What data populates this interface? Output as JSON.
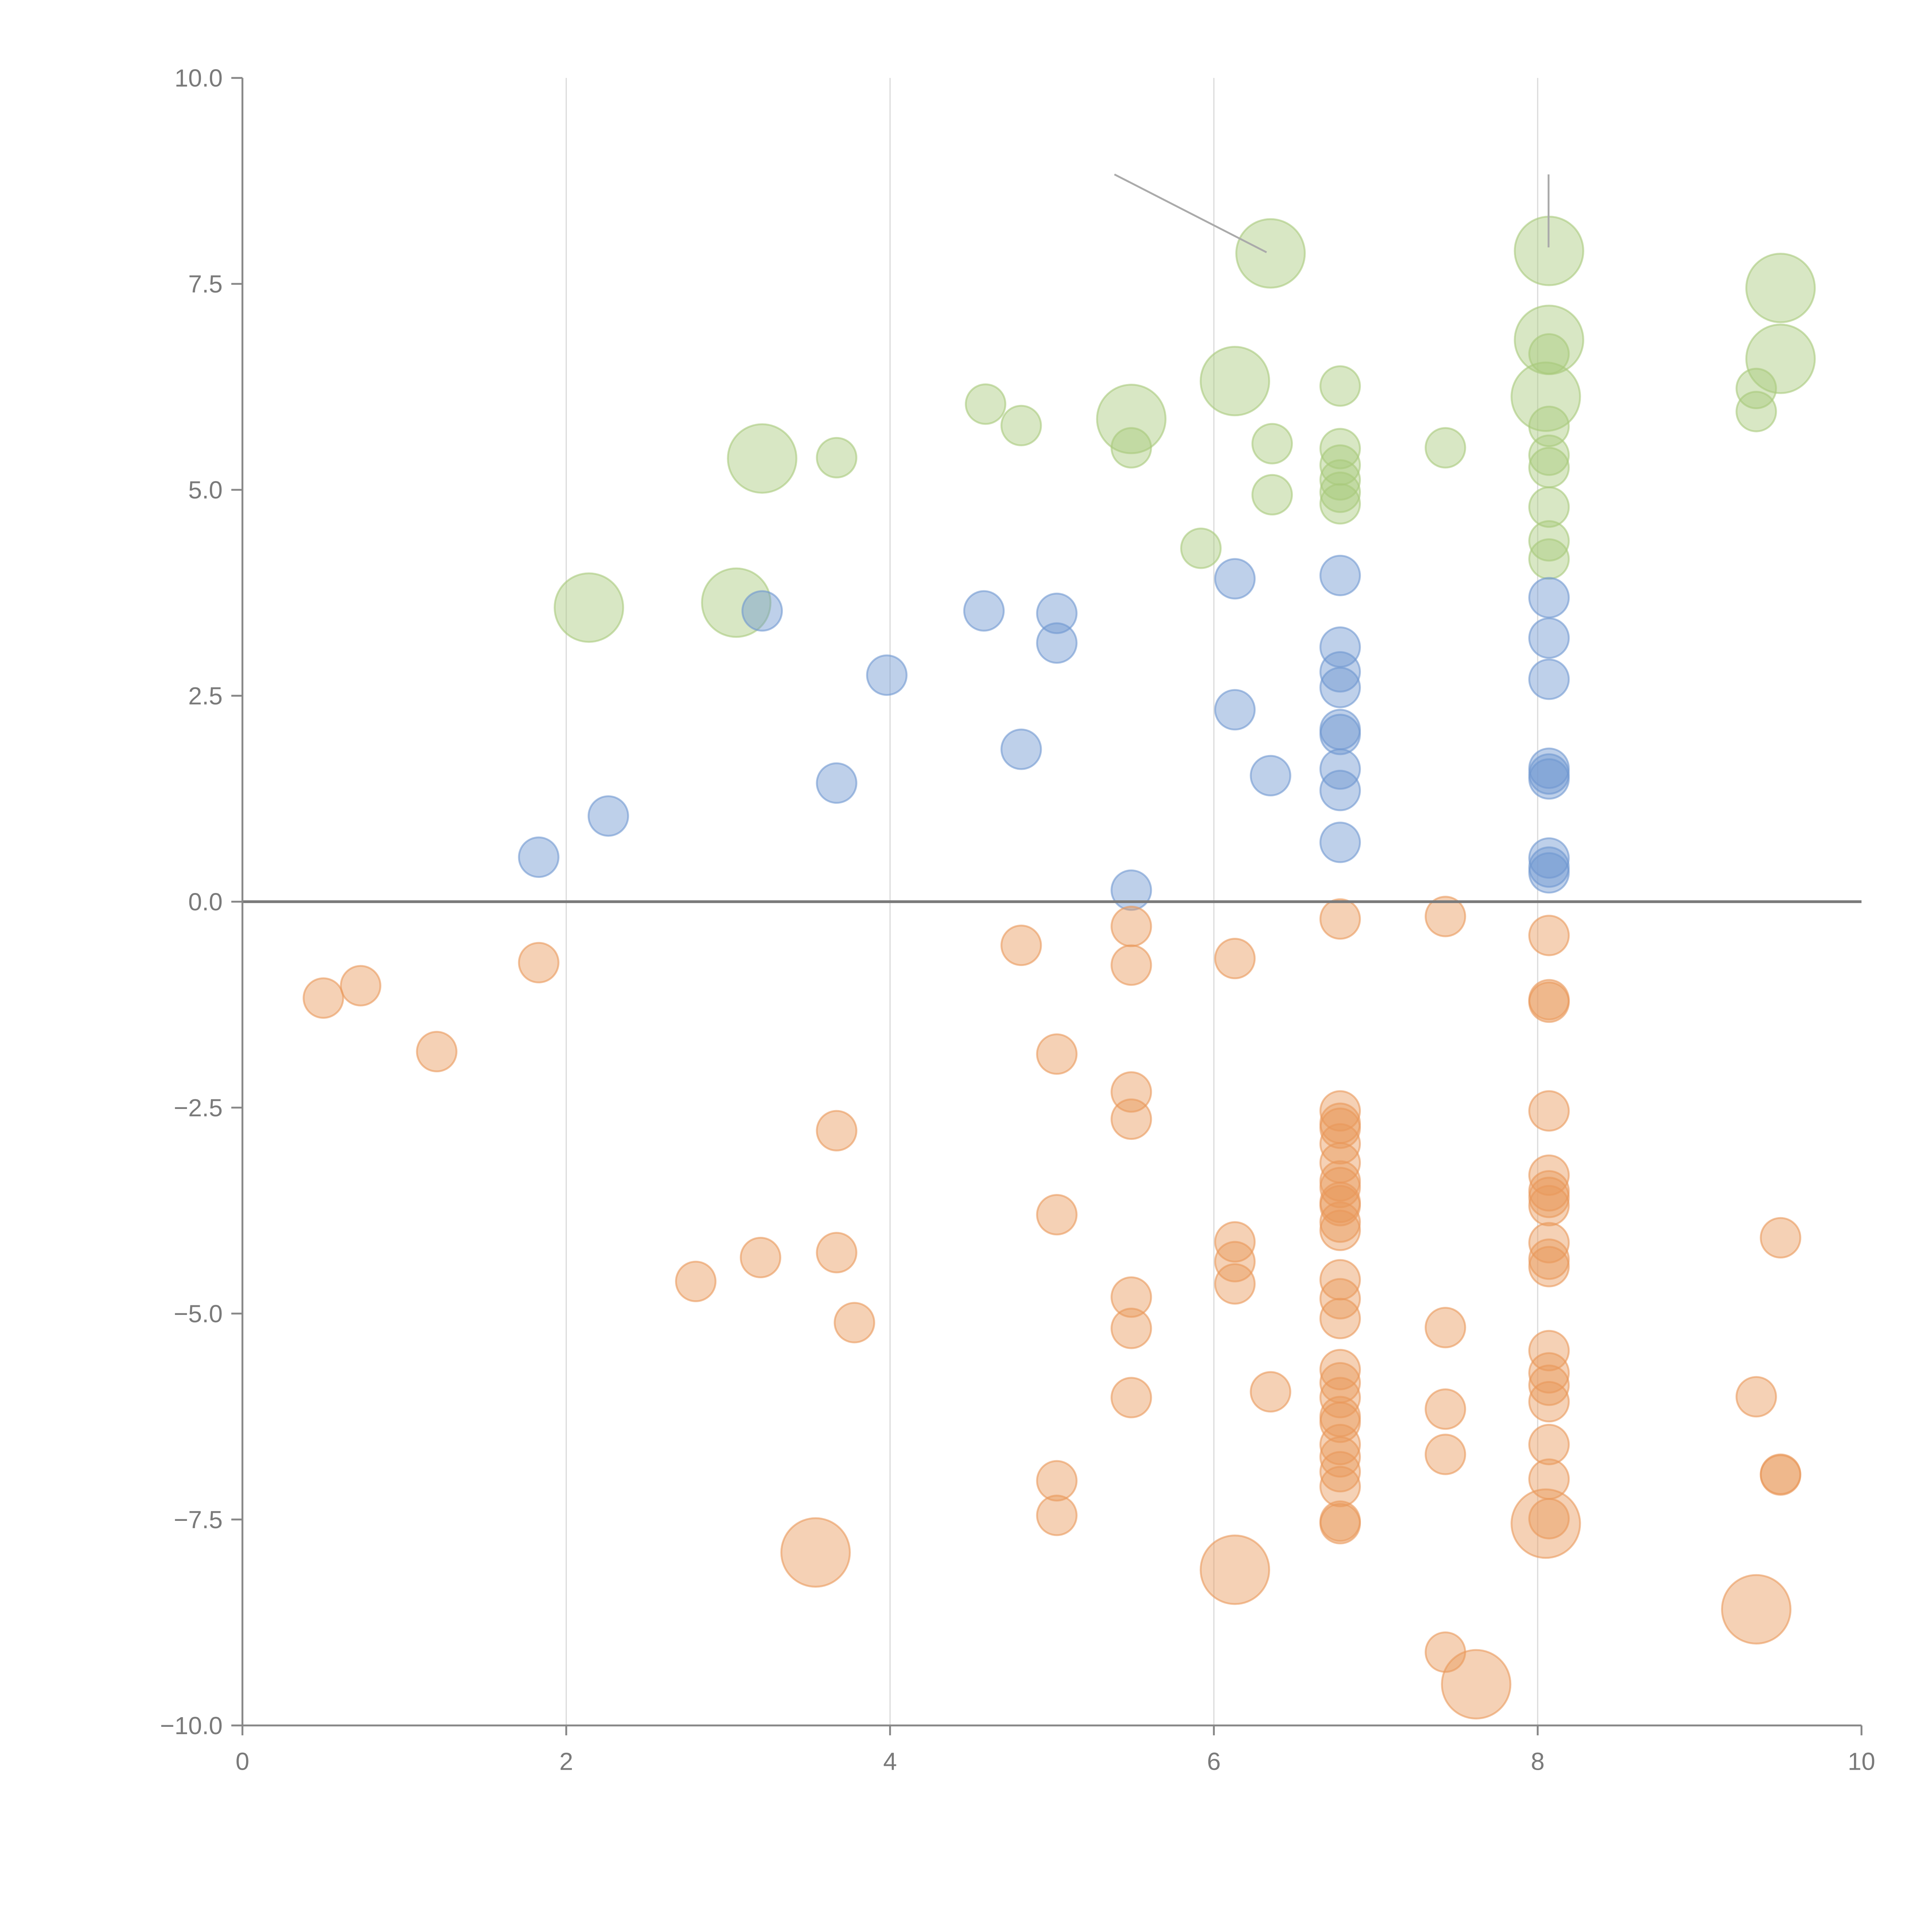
{
  "chart_data": {
    "type": "scatter",
    "title": "",
    "xlabel": "",
    "ylabel": "",
    "xlim": [
      0,
      10
    ],
    "ylim": [
      -10,
      10
    ],
    "grid": "vertical",
    "xticks": [
      0,
      2,
      4,
      6,
      8,
      10
    ],
    "xtick_labels": [
      "0",
      "2",
      "4",
      "6",
      "8",
      "10"
    ],
    "yticks": [
      10,
      7.5,
      5,
      2.5,
      0,
      -2.5,
      -5,
      -7.5,
      -10
    ],
    "ytick_labels": [
      "10.0",
      "7.5",
      "5.0",
      "2.5",
      "0.0",
      "−2.5",
      "−5.0",
      "−7.5",
      "−10.0"
    ],
    "point_format": [
      "x",
      "y",
      "size"
    ],
    "series": [
      {
        "color": "#a8c97c",
        "points": [
          [
            6.35,
            7.87,
            3
          ],
          [
            8.07,
            7.9,
            3
          ],
          [
            9.5,
            7.45,
            3
          ],
          [
            8.07,
            6.82,
            3
          ],
          [
            9.5,
            6.59,
            3
          ],
          [
            6.13,
            6.32,
            3
          ],
          [
            8.05,
            6.13,
            3
          ],
          [
            8.07,
            6.65,
            1
          ],
          [
            6.78,
            6.26,
            1
          ],
          [
            9.35,
            6.23,
            1
          ],
          [
            9.35,
            5.95,
            1
          ],
          [
            4.59,
            6.04,
            1
          ],
          [
            4.81,
            5.78,
            1
          ],
          [
            5.49,
            5.86,
            3
          ],
          [
            5.49,
            5.51,
            1
          ],
          [
            6.36,
            5.56,
            1
          ],
          [
            6.36,
            4.94,
            1
          ],
          [
            7.43,
            5.51,
            1
          ],
          [
            3.21,
            5.38,
            3
          ],
          [
            3.67,
            5.39,
            1
          ],
          [
            6.78,
            5.5,
            1
          ],
          [
            6.78,
            5.3,
            1
          ],
          [
            6.78,
            5.12,
            1
          ],
          [
            6.78,
            4.97,
            1
          ],
          [
            6.78,
            4.83,
            1
          ],
          [
            8.07,
            5.77,
            1
          ],
          [
            8.07,
            5.42,
            1
          ],
          [
            8.07,
            5.27,
            1
          ],
          [
            8.07,
            4.79,
            1
          ],
          [
            8.07,
            4.38,
            1
          ],
          [
            8.07,
            4.16,
            1
          ],
          [
            5.92,
            4.29,
            1
          ],
          [
            2.14,
            3.57,
            3
          ],
          [
            3.05,
            3.63,
            3
          ]
        ]
      },
      {
        "color": "#6f97d0",
        "points": [
          [
            3.21,
            3.53,
            1
          ],
          [
            4.58,
            3.53,
            1
          ],
          [
            5.03,
            3.5,
            1
          ],
          [
            5.03,
            3.14,
            1
          ],
          [
            3.98,
            2.75,
            1
          ],
          [
            6.13,
            3.92,
            1
          ],
          [
            6.13,
            2.33,
            1
          ],
          [
            6.35,
            1.53,
            1
          ],
          [
            4.81,
            1.85,
            1
          ],
          [
            3.67,
            1.44,
            1
          ],
          [
            2.26,
            1.04,
            1
          ],
          [
            1.83,
            0.54,
            1
          ],
          [
            5.49,
            0.14,
            1
          ],
          [
            6.78,
            3.96,
            1
          ],
          [
            6.78,
            3.09,
            1
          ],
          [
            6.78,
            2.79,
            1
          ],
          [
            6.78,
            2.6,
            1
          ],
          [
            6.78,
            2.09,
            1
          ],
          [
            6.78,
            2.03,
            1
          ],
          [
            6.78,
            1.61,
            1
          ],
          [
            6.78,
            1.35,
            1
          ],
          [
            6.78,
            0.72,
            1
          ],
          [
            8.07,
            3.69,
            1
          ],
          [
            8.07,
            3.2,
            1
          ],
          [
            8.07,
            2.7,
            1
          ],
          [
            8.07,
            1.62,
            1
          ],
          [
            8.07,
            1.55,
            1
          ],
          [
            8.07,
            1.49,
            1
          ],
          [
            8.07,
            0.53,
            1
          ],
          [
            8.07,
            0.42,
            1
          ],
          [
            8.07,
            0.35,
            1
          ]
        ]
      },
      {
        "color": "#e9985a",
        "points": [
          [
            0.5,
            -1.17,
            1
          ],
          [
            0.73,
            -1.02,
            1
          ],
          [
            1.2,
            -1.82,
            1
          ],
          [
            1.83,
            -0.74,
            1
          ],
          [
            4.81,
            -0.53,
            1
          ],
          [
            5.49,
            -0.3,
            1
          ],
          [
            5.49,
            -0.77,
            1
          ],
          [
            6.13,
            -0.69,
            1
          ],
          [
            6.78,
            -0.21,
            1
          ],
          [
            7.43,
            -0.18,
            1
          ],
          [
            8.07,
            -0.41,
            1
          ],
          [
            8.07,
            -1.19,
            1
          ],
          [
            8.07,
            -1.22,
            1
          ],
          [
            5.03,
            -1.85,
            1
          ],
          [
            5.49,
            -2.31,
            1
          ],
          [
            5.49,
            -2.64,
            1
          ],
          [
            3.67,
            -2.78,
            1
          ],
          [
            5.03,
            -3.8,
            1
          ],
          [
            3.67,
            -4.26,
            1
          ],
          [
            3.2,
            -4.32,
            1
          ],
          [
            2.8,
            -4.61,
            1
          ],
          [
            3.78,
            -5.11,
            1
          ],
          [
            5.49,
            -4.8,
            1
          ],
          [
            5.49,
            -5.18,
            1
          ],
          [
            5.49,
            -6.02,
            1
          ],
          [
            6.13,
            -4.13,
            1
          ],
          [
            6.13,
            -4.37,
            1
          ],
          [
            6.13,
            -4.64,
            1
          ],
          [
            6.35,
            -5.95,
            1
          ],
          [
            5.03,
            -7.03,
            1
          ],
          [
            5.03,
            -7.45,
            1
          ],
          [
            7.43,
            -5.17,
            1
          ],
          [
            7.43,
            -6.16,
            1
          ],
          [
            7.43,
            -6.71,
            1
          ],
          [
            7.43,
            -9.11,
            1
          ],
          [
            9.5,
            -4.08,
            1
          ],
          [
            9.35,
            -6.01,
            1
          ],
          [
            9.5,
            -6.95,
            1
          ],
          [
            9.5,
            -6.96,
            1
          ],
          [
            6.78,
            -2.54,
            1
          ],
          [
            6.78,
            -2.69,
            1
          ],
          [
            6.78,
            -2.75,
            1
          ],
          [
            6.78,
            -2.94,
            1
          ],
          [
            6.78,
            -3.17,
            1
          ],
          [
            6.78,
            -3.39,
            1
          ],
          [
            6.78,
            -3.47,
            1
          ],
          [
            6.78,
            -3.65,
            1
          ],
          [
            6.78,
            -3.69,
            1
          ],
          [
            6.78,
            -3.89,
            1
          ],
          [
            6.78,
            -3.99,
            1
          ],
          [
            6.78,
            -4.59,
            1
          ],
          [
            6.78,
            -4.82,
            1
          ],
          [
            6.78,
            -5.06,
            1
          ],
          [
            6.78,
            -5.68,
            1
          ],
          [
            6.78,
            -5.84,
            1
          ],
          [
            6.78,
            -6.02,
            1
          ],
          [
            6.78,
            -6.25,
            1
          ],
          [
            6.78,
            -6.32,
            1
          ],
          [
            6.78,
            -6.59,
            1
          ],
          [
            6.78,
            -6.74,
            1
          ],
          [
            6.78,
            -6.92,
            1
          ],
          [
            6.78,
            -7.1,
            1
          ],
          [
            6.78,
            -7.52,
            1
          ],
          [
            6.78,
            -7.55,
            1
          ],
          [
            8.07,
            -2.54,
            1
          ],
          [
            8.07,
            -3.32,
            1
          ],
          [
            8.07,
            -3.51,
            1
          ],
          [
            8.07,
            -3.59,
            1
          ],
          [
            8.07,
            -3.69,
            1
          ],
          [
            8.07,
            -4.14,
            1
          ],
          [
            8.07,
            -4.34,
            1
          ],
          [
            8.07,
            -4.43,
            1
          ],
          [
            8.07,
            -5.45,
            1
          ],
          [
            8.07,
            -5.72,
            1
          ],
          [
            8.07,
            -5.87,
            1
          ],
          [
            8.07,
            -6.07,
            1
          ],
          [
            8.07,
            -6.59,
            1
          ],
          [
            8.07,
            -7.01,
            1
          ],
          [
            8.07,
            -7.49,
            1
          ],
          [
            3.54,
            -7.9,
            3
          ],
          [
            6.13,
            -8.11,
            3
          ],
          [
            7.62,
            -9.5,
            3
          ],
          [
            9.35,
            -8.59,
            3
          ],
          [
            8.05,
            -7.55,
            3
          ]
        ]
      }
    ]
  }
}
